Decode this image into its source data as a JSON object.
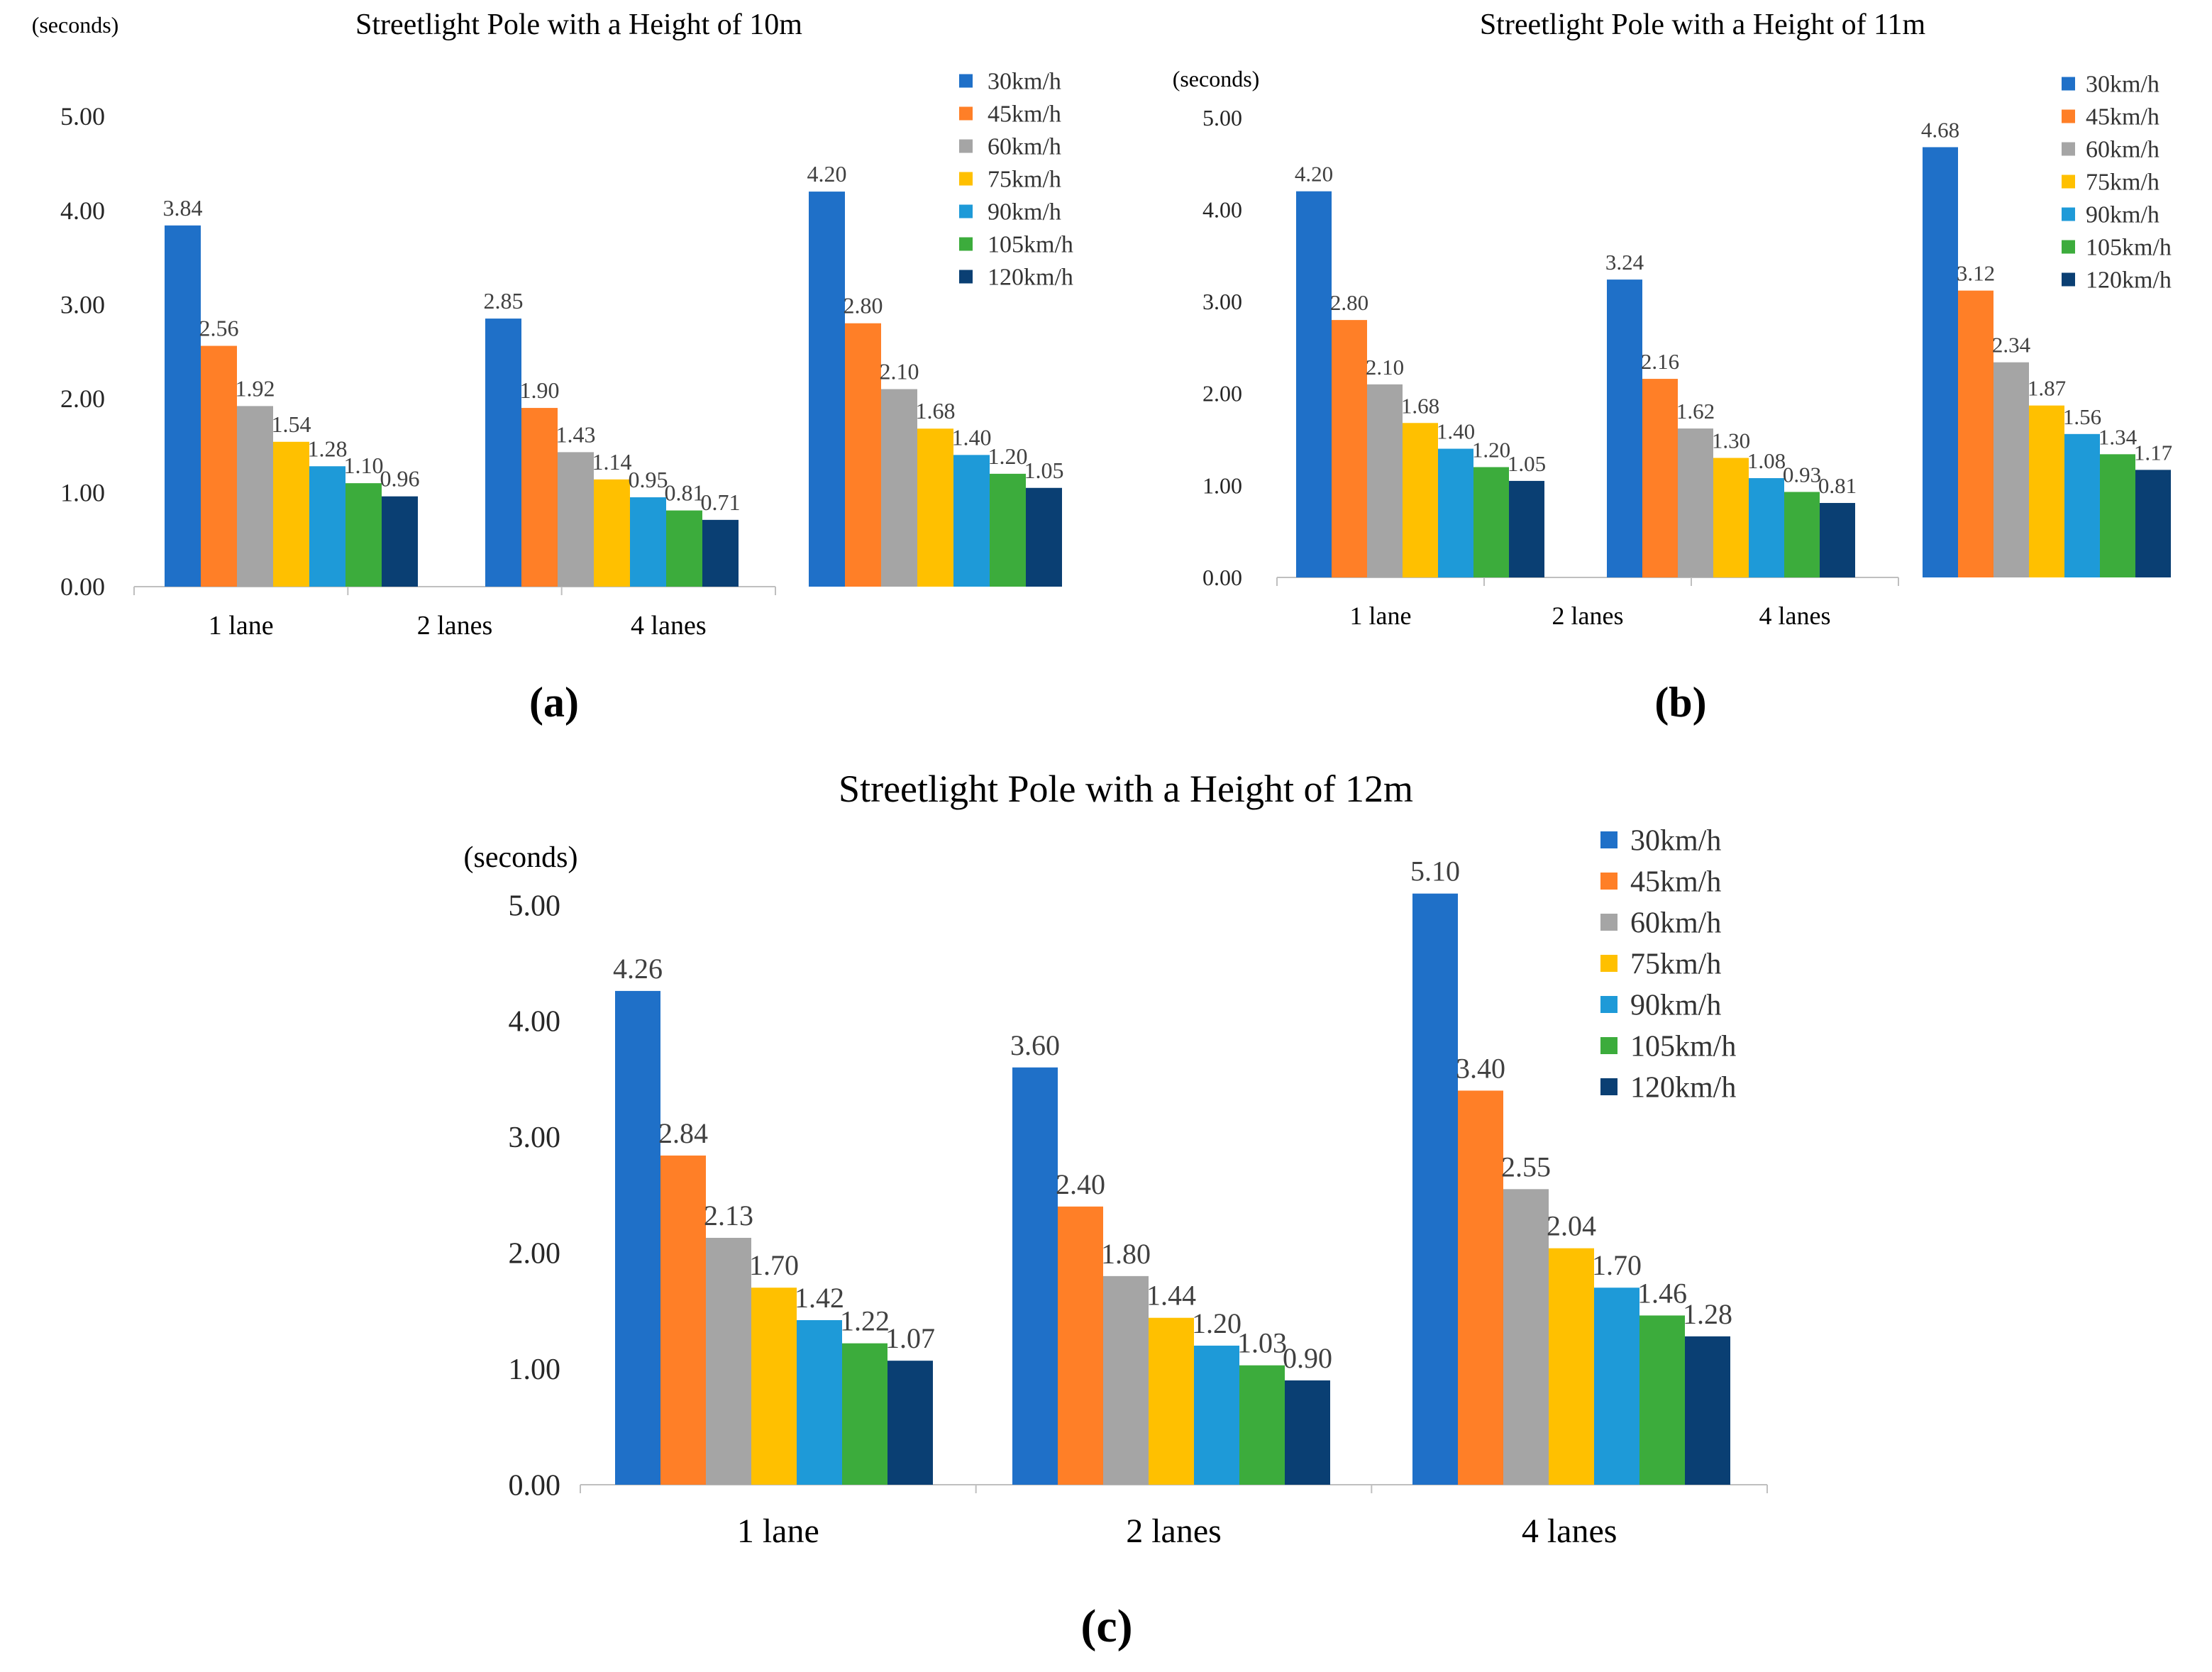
{
  "figure": {
    "panel_labels": [
      "(a)",
      "(b)",
      "(c)"
    ]
  },
  "chart_data": [
    {
      "type": "bar",
      "panel": "(a)",
      "title": "Streetlight Pole with a Height of 10m",
      "ylabel": "(seconds)",
      "xlabel": "",
      "ylim": [
        0,
        5
      ],
      "yticks": [
        "0.00",
        "1.00",
        "2.00",
        "3.00",
        "4.00",
        "5.00"
      ],
      "grid": false,
      "legend_position": "top-right",
      "categories": [
        "1 lane",
        "2 lanes",
        "4 lanes"
      ],
      "series": [
        {
          "name": "30km/h",
          "color": "#1F70C8",
          "values": [
            3.84,
            2.85,
            4.2
          ],
          "labels": [
            "3.84",
            "2.85",
            "4.20"
          ]
        },
        {
          "name": "45km/h",
          "color": "#FF7F27",
          "values": [
            2.56,
            1.9,
            2.8
          ],
          "labels": [
            "2.56",
            "1.90",
            "2.80"
          ]
        },
        {
          "name": "60km/h",
          "color": "#A5A5A5",
          "values": [
            1.92,
            1.43,
            2.1
          ],
          "labels": [
            "1.92",
            "1.43",
            "2.10"
          ]
        },
        {
          "name": "75km/h",
          "color": "#FFC000",
          "values": [
            1.54,
            1.14,
            1.68
          ],
          "labels": [
            "1.54",
            "1.14",
            "1.68"
          ]
        },
        {
          "name": "90km/h",
          "color": "#1E9AD8",
          "values": [
            1.28,
            0.95,
            1.4
          ],
          "labels": [
            "1.28",
            "0.95",
            "1.40"
          ]
        },
        {
          "name": "105km/h",
          "color": "#3CAC3C",
          "values": [
            1.1,
            0.81,
            1.2
          ],
          "labels": [
            "1.10",
            "0.81",
            "1.20"
          ]
        },
        {
          "name": "120km/h",
          "color": "#0A3F73",
          "values": [
            0.96,
            0.71,
            1.05
          ],
          "labels": [
            "0.96",
            "0.71",
            "1.05"
          ]
        }
      ]
    },
    {
      "type": "bar",
      "panel": "(b)",
      "title": "Streetlight Pole with a Height of 11m",
      "ylabel": "(seconds)",
      "xlabel": "",
      "ylim": [
        0,
        5
      ],
      "yticks": [
        "0.00",
        "1.00",
        "2.00",
        "3.00",
        "4.00",
        "5.00"
      ],
      "grid": false,
      "legend_position": "top-right",
      "categories": [
        "1 lane",
        "2 lanes",
        "4 lanes"
      ],
      "series": [
        {
          "name": "30km/h",
          "color": "#1F70C8",
          "values": [
            4.2,
            3.24,
            4.68
          ],
          "labels": [
            "4.20",
            "3.24",
            "4.68"
          ]
        },
        {
          "name": "45km/h",
          "color": "#FF7F27",
          "values": [
            2.8,
            2.16,
            3.12
          ],
          "labels": [
            "2.80",
            "2.16",
            "3.12"
          ]
        },
        {
          "name": "60km/h",
          "color": "#A5A5A5",
          "values": [
            2.1,
            1.62,
            2.34
          ],
          "labels": [
            "2.10",
            "1.62",
            "2.34"
          ]
        },
        {
          "name": "75km/h",
          "color": "#FFC000",
          "values": [
            1.68,
            1.3,
            1.87
          ],
          "labels": [
            "1.68",
            "1.30",
            "1.87"
          ]
        },
        {
          "name": "90km/h",
          "color": "#1E9AD8",
          "values": [
            1.4,
            1.08,
            1.56
          ],
          "labels": [
            "1.40",
            "1.08",
            "1.56"
          ]
        },
        {
          "name": "105km/h",
          "color": "#3CAC3C",
          "values": [
            1.2,
            0.93,
            1.34
          ],
          "labels": [
            "1.20",
            "0.93",
            "1.34"
          ]
        },
        {
          "name": "120km/h",
          "color": "#0A3F73",
          "values": [
            1.05,
            0.81,
            1.17
          ],
          "labels": [
            "1.05",
            "0.81",
            "1.17"
          ]
        }
      ]
    },
    {
      "type": "bar",
      "panel": "(c)",
      "title": "Streetlight Pole with a Height of 12m",
      "ylabel": "(seconds)",
      "xlabel": "",
      "ylim": [
        0,
        5
      ],
      "yticks": [
        "0.00",
        "1.00",
        "2.00",
        "3.00",
        "4.00",
        "5.00"
      ],
      "grid": false,
      "legend_position": "top-right",
      "categories": [
        "1 lane",
        "2 lanes",
        "4 lanes"
      ],
      "series": [
        {
          "name": "30km/h",
          "color": "#1F70C8",
          "values": [
            4.26,
            3.6,
            5.1
          ],
          "labels": [
            "4.26",
            "3.60",
            "5.10"
          ]
        },
        {
          "name": "45km/h",
          "color": "#FF7F27",
          "values": [
            2.84,
            2.4,
            3.4
          ],
          "labels": [
            "2.84",
            "2.40",
            "3.40"
          ]
        },
        {
          "name": "60km/h",
          "color": "#A5A5A5",
          "values": [
            2.13,
            1.8,
            2.55
          ],
          "labels": [
            "2.13",
            "1.80",
            "2.55"
          ]
        },
        {
          "name": "75km/h",
          "color": "#FFC000",
          "values": [
            1.7,
            1.44,
            2.04
          ],
          "labels": [
            "1.70",
            "1.44",
            "2.04"
          ]
        },
        {
          "name": "90km/h",
          "color": "#1E9AD8",
          "values": [
            1.42,
            1.2,
            1.7
          ],
          "labels": [
            "1.42",
            "1.20",
            "1.70"
          ]
        },
        {
          "name": "105km/h",
          "color": "#3CAC3C",
          "values": [
            1.22,
            1.03,
            1.46
          ],
          "labels": [
            "1.22",
            "1.03",
            "1.46"
          ]
        },
        {
          "name": "120km/h",
          "color": "#0A3F73",
          "values": [
            1.07,
            0.9,
            1.28
          ],
          "labels": [
            "1.07",
            "0.90",
            "1.28"
          ]
        }
      ]
    }
  ]
}
